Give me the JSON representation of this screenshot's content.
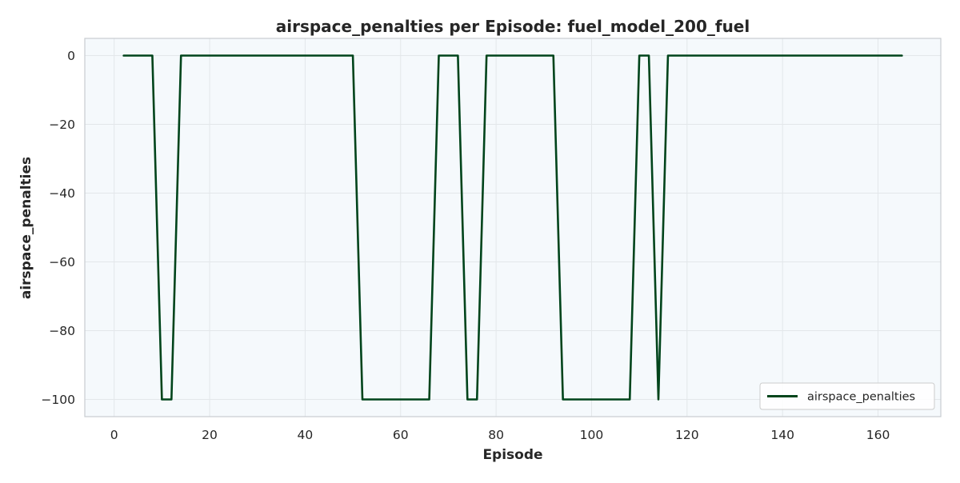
{
  "chart_data": {
    "type": "line",
    "title": "airspace_penalties per Episode: fuel_model_200_fuel",
    "xlabel": "Episode",
    "ylabel": "airspace_penalties",
    "xlim": [
      -6.15,
      173.15
    ],
    "ylim": [
      -105,
      5
    ],
    "xticks": [
      0,
      20,
      40,
      60,
      80,
      100,
      120,
      140,
      160
    ],
    "xtick_labels": [
      "0",
      "20",
      "40",
      "60",
      "80",
      "100",
      "120",
      "140",
      "160"
    ],
    "yticks": [
      0,
      -20,
      -40,
      -60,
      -80,
      -100
    ],
    "ytick_labels": [
      "0",
      "−20",
      "−40",
      "−60",
      "−80",
      "−100"
    ],
    "grid": true,
    "legend_position": "lower-right",
    "series": [
      {
        "name": "airspace_penalties",
        "color": "#00441b",
        "x": [
          2,
          8,
          10,
          12,
          14,
          50,
          52,
          66,
          68,
          72,
          74,
          76,
          78,
          92,
          94,
          108,
          110,
          112,
          114,
          116,
          165
        ],
        "y": [
          0,
          0,
          -100,
          -100,
          0,
          0,
          -100,
          -100,
          0,
          0,
          -100,
          -100,
          0,
          0,
          -100,
          -100,
          0,
          0,
          -100,
          0,
          0
        ]
      }
    ]
  },
  "colors": {
    "plot_background": "#f5f9fc",
    "grid": "#e3e7ea",
    "spine": "#c8ccd0",
    "line": "#00441b"
  }
}
